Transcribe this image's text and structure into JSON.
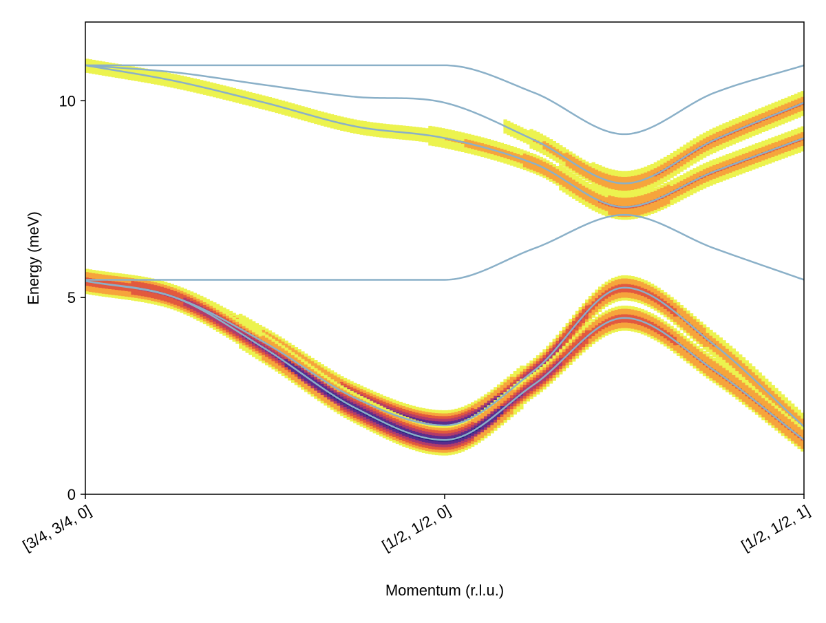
{
  "chart_data": {
    "type": "heatmap",
    "title": "",
    "xlabel": "Momentum (r.l.u.)",
    "ylabel": "Energy (meV)",
    "xlim": [
      0,
      2
    ],
    "ylim": [
      0,
      12
    ],
    "x_ticks": [
      {
        "value": 0,
        "label": "[3/4, 3/4, 0]"
      },
      {
        "value": 1,
        "label": "[1/2, 1/2, 0]"
      },
      {
        "value": 2,
        "label": "[1/2, 1/2, 1]"
      }
    ],
    "y_ticks": [
      {
        "value": 0,
        "label": "0"
      },
      {
        "value": 5,
        "label": "5"
      },
      {
        "value": 10,
        "label": "10"
      }
    ],
    "grid": false,
    "legend": "none",
    "line_color": "#8ab0c8",
    "colormap": [
      "#ecf34f",
      "#f6a43c",
      "#e2593e",
      "#b23b6a",
      "#5a2c8e",
      "#23237a"
    ],
    "series": [
      {
        "x": [
          0,
          0.25,
          0.5,
          0.75,
          1,
          1.25,
          1.5,
          1.75,
          2
        ],
        "values": [
          5.42,
          5.0,
          3.85,
          2.45,
          1.75,
          3.15,
          5.25,
          3.8,
          1.72
        ],
        "intensity": [
          0.45,
          0.55,
          0.75,
          0.95,
          1.0,
          0.65,
          0.42,
          0.3,
          0.25
        ]
      },
      {
        "x": [
          0,
          0.25,
          0.5,
          0.75,
          1,
          1.25,
          1.5,
          1.75,
          2
        ],
        "values": [
          5.42,
          5.0,
          3.7,
          2.2,
          1.38,
          2.8,
          4.48,
          3.15,
          1.38
        ],
        "intensity": [
          0.45,
          0.55,
          0.75,
          0.95,
          1.0,
          0.65,
          0.42,
          0.32,
          0.32
        ]
      },
      {
        "x": [
          0,
          0.25,
          0.5,
          0.75,
          1,
          1.25,
          1.5,
          1.75,
          2
        ],
        "values": [
          5.45,
          5.45,
          5.45,
          5.45,
          5.45,
          6.25,
          7.1,
          6.25,
          5.45
        ],
        "intensity": [
          0,
          0,
          0,
          0,
          0,
          0,
          0,
          0,
          0
        ]
      },
      {
        "x": [
          0,
          0.25,
          0.5,
          0.75,
          1,
          1.25,
          1.5,
          1.75,
          2
        ],
        "values": [
          10.9,
          10.5,
          9.95,
          9.35,
          9.05,
          8.4,
          7.3,
          8.2,
          9.05
        ],
        "intensity": [
          0.08,
          0.08,
          0.08,
          0.08,
          0.1,
          0.18,
          0.32,
          0.3,
          0.3
        ]
      },
      {
        "x": [
          0,
          0.25,
          0.5,
          0.75,
          1,
          1.25,
          1.5,
          1.75,
          2
        ],
        "values": [
          10.9,
          10.72,
          10.4,
          10.1,
          9.95,
          9.0,
          7.9,
          9.0,
          9.95
        ],
        "intensity": [
          0,
          0,
          0,
          0,
          0,
          0.1,
          0.28,
          0.3,
          0.3
        ]
      },
      {
        "x": [
          0,
          0.25,
          0.5,
          0.75,
          1,
          1.25,
          1.5,
          1.75,
          2
        ],
        "values": [
          10.9,
          10.9,
          10.9,
          10.9,
          10.9,
          10.2,
          9.15,
          10.2,
          10.9
        ],
        "intensity": [
          0,
          0,
          0,
          0,
          0,
          0,
          0,
          0,
          0
        ]
      }
    ]
  }
}
